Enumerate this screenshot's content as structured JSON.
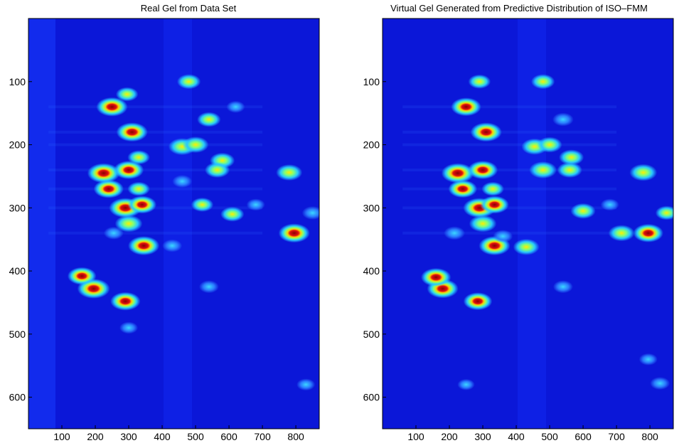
{
  "figure": {
    "panel_titles": [
      "Real Gel from Data Set",
      "Virtual Gel Generated from Predictive Distribution of ISO–FMM"
    ]
  },
  "chart_data": [
    {
      "type": "heatmap",
      "title": "Real Gel from Data Set",
      "xlabel": "",
      "ylabel": "",
      "xlim": [
        0,
        870
      ],
      "ylim": [
        650,
        0
      ],
      "xticks": [
        100,
        200,
        300,
        400,
        500,
        600,
        700,
        800
      ],
      "yticks": [
        100,
        200,
        300,
        400,
        500,
        600
      ],
      "colormap": "jet",
      "colors": {
        "background": "#0b17d8",
        "low": "#1f3cff",
        "mid": "#27c8ff",
        "high": "#ffee00",
        "peak": "#8b0000"
      },
      "spots": [
        {
          "x": 225,
          "y": 245,
          "intensity": 1.0
        },
        {
          "x": 290,
          "y": 300,
          "intensity": 1.0
        },
        {
          "x": 195,
          "y": 428,
          "intensity": 1.0
        },
        {
          "x": 250,
          "y": 140,
          "intensity": 0.95
        },
        {
          "x": 310,
          "y": 180,
          "intensity": 0.95
        },
        {
          "x": 300,
          "y": 240,
          "intensity": 0.9
        },
        {
          "x": 240,
          "y": 270,
          "intensity": 0.9
        },
        {
          "x": 345,
          "y": 360,
          "intensity": 0.95
        },
        {
          "x": 795,
          "y": 340,
          "intensity": 0.95
        },
        {
          "x": 160,
          "y": 408,
          "intensity": 0.85
        },
        {
          "x": 290,
          "y": 448,
          "intensity": 0.9
        },
        {
          "x": 340,
          "y": 295,
          "intensity": 0.85
        },
        {
          "x": 300,
          "y": 325,
          "intensity": 0.8
        },
        {
          "x": 780,
          "y": 244,
          "intensity": 0.75
        },
        {
          "x": 460,
          "y": 203,
          "intensity": 0.8
        },
        {
          "x": 500,
          "y": 200,
          "intensity": 0.75
        },
        {
          "x": 540,
          "y": 160,
          "intensity": 0.65
        },
        {
          "x": 580,
          "y": 225,
          "intensity": 0.7
        },
        {
          "x": 565,
          "y": 240,
          "intensity": 0.7
        },
        {
          "x": 610,
          "y": 310,
          "intensity": 0.65
        },
        {
          "x": 520,
          "y": 295,
          "intensity": 0.6
        },
        {
          "x": 480,
          "y": 100,
          "intensity": 0.65
        },
        {
          "x": 295,
          "y": 120,
          "intensity": 0.6
        },
        {
          "x": 330,
          "y": 220,
          "intensity": 0.6
        },
        {
          "x": 330,
          "y": 270,
          "intensity": 0.6
        },
        {
          "x": 255,
          "y": 340,
          "intensity": 0.5
        },
        {
          "x": 850,
          "y": 308,
          "intensity": 0.55
        },
        {
          "x": 430,
          "y": 360,
          "intensity": 0.5
        },
        {
          "x": 540,
          "y": 425,
          "intensity": 0.5
        },
        {
          "x": 680,
          "y": 295,
          "intensity": 0.45
        },
        {
          "x": 300,
          "y": 490,
          "intensity": 0.45
        },
        {
          "x": 830,
          "y": 580,
          "intensity": 0.45
        },
        {
          "x": 460,
          "y": 258,
          "intensity": 0.5
        },
        {
          "x": 620,
          "y": 140,
          "intensity": 0.45
        }
      ]
    },
    {
      "type": "heatmap",
      "title": "Virtual Gel Generated from Predictive Distribution of ISO–FMM",
      "xlabel": "",
      "ylabel": "",
      "xlim": [
        0,
        870
      ],
      "ylim": [
        650,
        0
      ],
      "xticks": [
        100,
        200,
        300,
        400,
        500,
        600,
        700,
        800
      ],
      "yticks": [
        100,
        200,
        300,
        400,
        500,
        600
      ],
      "colormap": "jet",
      "colors": {
        "background": "#0b17d8",
        "low": "#1f3cff",
        "mid": "#27c8ff",
        "high": "#ffee00",
        "peak": "#8b0000"
      },
      "spots": [
        {
          "x": 225,
          "y": 245,
          "intensity": 1.0
        },
        {
          "x": 290,
          "y": 300,
          "intensity": 1.0
        },
        {
          "x": 180,
          "y": 428,
          "intensity": 0.95
        },
        {
          "x": 160,
          "y": 410,
          "intensity": 0.9
        },
        {
          "x": 250,
          "y": 140,
          "intensity": 0.9
        },
        {
          "x": 310,
          "y": 180,
          "intensity": 0.95
        },
        {
          "x": 300,
          "y": 240,
          "intensity": 0.9
        },
        {
          "x": 240,
          "y": 270,
          "intensity": 0.85
        },
        {
          "x": 335,
          "y": 360,
          "intensity": 0.95
        },
        {
          "x": 795,
          "y": 340,
          "intensity": 0.9
        },
        {
          "x": 285,
          "y": 448,
          "intensity": 0.85
        },
        {
          "x": 335,
          "y": 295,
          "intensity": 0.85
        },
        {
          "x": 300,
          "y": 325,
          "intensity": 0.8
        },
        {
          "x": 780,
          "y": 244,
          "intensity": 0.8
        },
        {
          "x": 455,
          "y": 203,
          "intensity": 0.75
        },
        {
          "x": 500,
          "y": 200,
          "intensity": 0.7
        },
        {
          "x": 480,
          "y": 240,
          "intensity": 0.8
        },
        {
          "x": 565,
          "y": 220,
          "intensity": 0.7
        },
        {
          "x": 560,
          "y": 240,
          "intensity": 0.7
        },
        {
          "x": 600,
          "y": 305,
          "intensity": 0.7
        },
        {
          "x": 715,
          "y": 340,
          "intensity": 0.75
        },
        {
          "x": 430,
          "y": 362,
          "intensity": 0.75
        },
        {
          "x": 480,
          "y": 100,
          "intensity": 0.65
        },
        {
          "x": 290,
          "y": 100,
          "intensity": 0.6
        },
        {
          "x": 330,
          "y": 270,
          "intensity": 0.6
        },
        {
          "x": 215,
          "y": 340,
          "intensity": 0.55
        },
        {
          "x": 850,
          "y": 308,
          "intensity": 0.6
        },
        {
          "x": 830,
          "y": 578,
          "intensity": 0.5
        },
        {
          "x": 540,
          "y": 425,
          "intensity": 0.5
        },
        {
          "x": 680,
          "y": 295,
          "intensity": 0.45
        },
        {
          "x": 795,
          "y": 540,
          "intensity": 0.45
        },
        {
          "x": 540,
          "y": 160,
          "intensity": 0.55
        },
        {
          "x": 360,
          "y": 345,
          "intensity": 0.5
        },
        {
          "x": 250,
          "y": 580,
          "intensity": 0.4
        }
      ]
    }
  ]
}
